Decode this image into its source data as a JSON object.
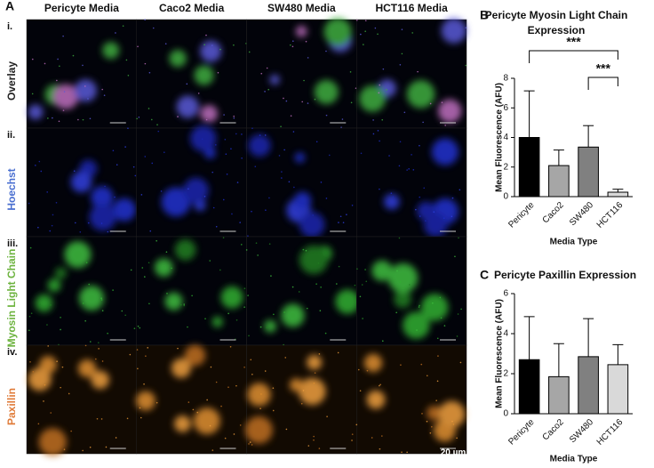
{
  "panel_a": {
    "label": "A",
    "columns": [
      "Pericyte Media",
      "Caco2 Media",
      "SW480 Media",
      "HCT116 Media"
    ],
    "rows": [
      {
        "numeral": "i.",
        "name": "Overlay",
        "color": "#222222"
      },
      {
        "numeral": "ii.",
        "name": "Hoechst",
        "color": "#4a6fd0"
      },
      {
        "numeral": "iii.",
        "name": "Myosin Light Chain",
        "color": "#6db33f"
      },
      {
        "numeral": "iv.",
        "name": "Paxillin",
        "color": "#e07b39"
      }
    ],
    "scale_bar": "20 µm"
  },
  "chart_data": [
    {
      "type": "bar",
      "panel": "B",
      "title": [
        "Pericyte Myosin Light Chain",
        "Expression"
      ],
      "y_label": "Mean Fluorescence (AFU)",
      "x_label": "Media Type",
      "categories": [
        "Pericyte",
        "Caco2",
        "SW480",
        "HCT116"
      ],
      "values": [
        4.0,
        2.1,
        3.35,
        0.3
      ],
      "errors": [
        3.15,
        1.05,
        1.45,
        0.2
      ],
      "colors": [
        "#000000",
        "#a6a6a6",
        "#808080",
        "#d9d9d9"
      ],
      "ylim": [
        0,
        8
      ],
      "yticks": [
        0,
        2,
        4,
        6,
        8
      ],
      "significance": [
        {
          "label": "***",
          "between": [
            "Pericyte",
            "HCT116"
          ]
        },
        {
          "label": "***",
          "between": [
            "SW480",
            "HCT116"
          ]
        }
      ]
    },
    {
      "type": "bar",
      "panel": "C",
      "title": [
        "Pericyte Paxillin Expression"
      ],
      "y_label": "Mean Fluorescence (AFU)",
      "x_label": "Media Type",
      "categories": [
        "Pericyte",
        "Caco2",
        "SW480",
        "HCT116"
      ],
      "values": [
        2.7,
        1.85,
        2.85,
        2.45
      ],
      "errors": [
        2.15,
        1.65,
        1.9,
        1.0
      ],
      "colors": [
        "#000000",
        "#a6a6a6",
        "#808080",
        "#d9d9d9"
      ],
      "ylim": [
        0,
        6
      ],
      "yticks": [
        0,
        2,
        4,
        6
      ],
      "significance": []
    }
  ]
}
